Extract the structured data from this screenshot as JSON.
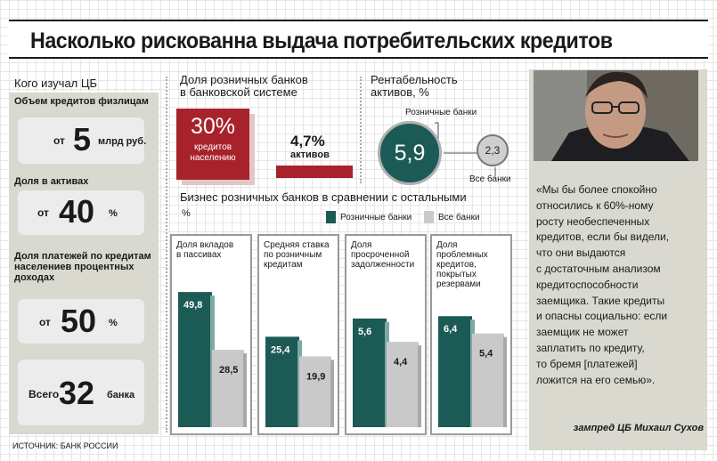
{
  "title": "Насколько рискованна выдача потребительских кредитов",
  "left_panel": {
    "heading": "Кого изучал ЦБ",
    "items": [
      {
        "label": "Объем кредитов физлицам",
        "prefix": "от",
        "value": "5",
        "unit": "млрд руб."
      },
      {
        "label": "Доля в активах",
        "prefix": "от",
        "value": "40",
        "unit": "%"
      },
      {
        "label": "Доля платежей по кредитам населениев процентных доходах",
        "prefix": "от",
        "value": "50",
        "unit": "%"
      },
      {
        "label": "",
        "prefix": "Всего",
        "value": "32",
        "unit": "банка"
      }
    ]
  },
  "share": {
    "title_line1": "Доля розничных банков",
    "title_line2": "в банковской системе",
    "big_pct": "30%",
    "big_sub_line1": "кредитов",
    "big_sub_line2": "населению",
    "small_pct": "4,7%",
    "small_sub": "активов"
  },
  "profitability": {
    "title_line1": "Рентабельность",
    "title_line2": "активов, %",
    "retail_label": "Розничные банки",
    "all_label": "Все банки",
    "retail_value": "5,9",
    "all_value": "2,3"
  },
  "colors": {
    "retail": "#1b5a55",
    "all": "#c9c9c9",
    "accent": "#a8222b"
  },
  "chart_data": {
    "type": "bar",
    "title": "Бизнес розничных банков в сравнении с остальными",
    "unit": "%",
    "categories": [
      "Доля вкладов в пассивах",
      "Средняя ставка по розничным кредитам",
      "Доля просроченной задолженности",
      "Доля проблемных кредитов, покрытых резервами"
    ],
    "series": [
      {
        "name": "Розничные банки",
        "values": [
          49.8,
          25.4,
          5.6,
          6.4
        ],
        "labels": [
          "49,8",
          "25,4",
          "5,6",
          "6,4"
        ]
      },
      {
        "name": "Все банки",
        "values": [
          28.5,
          19.9,
          4.4,
          5.4
        ],
        "labels": [
          "28,5",
          "19,9",
          "4,4",
          "5,4"
        ]
      }
    ]
  },
  "quote": {
    "lines": [
      "«Мы бы более спокойно",
      "относились к 60%-ному",
      "росту необеспеченных",
      "кредитов, если бы видели,",
      "что они выдаются",
      "с достаточным анализом",
      "кредитоспособности",
      "заемщика. Такие кредиты",
      "и опасны социально: если",
      "заемщик не может",
      "заплатить по кредиту,",
      "то бремя [платежей]",
      "ложится на его семью»."
    ],
    "author": "зампред ЦБ Михаил Сухов"
  },
  "source": "ИСТОЧНИК: БАНК РОССИИ"
}
